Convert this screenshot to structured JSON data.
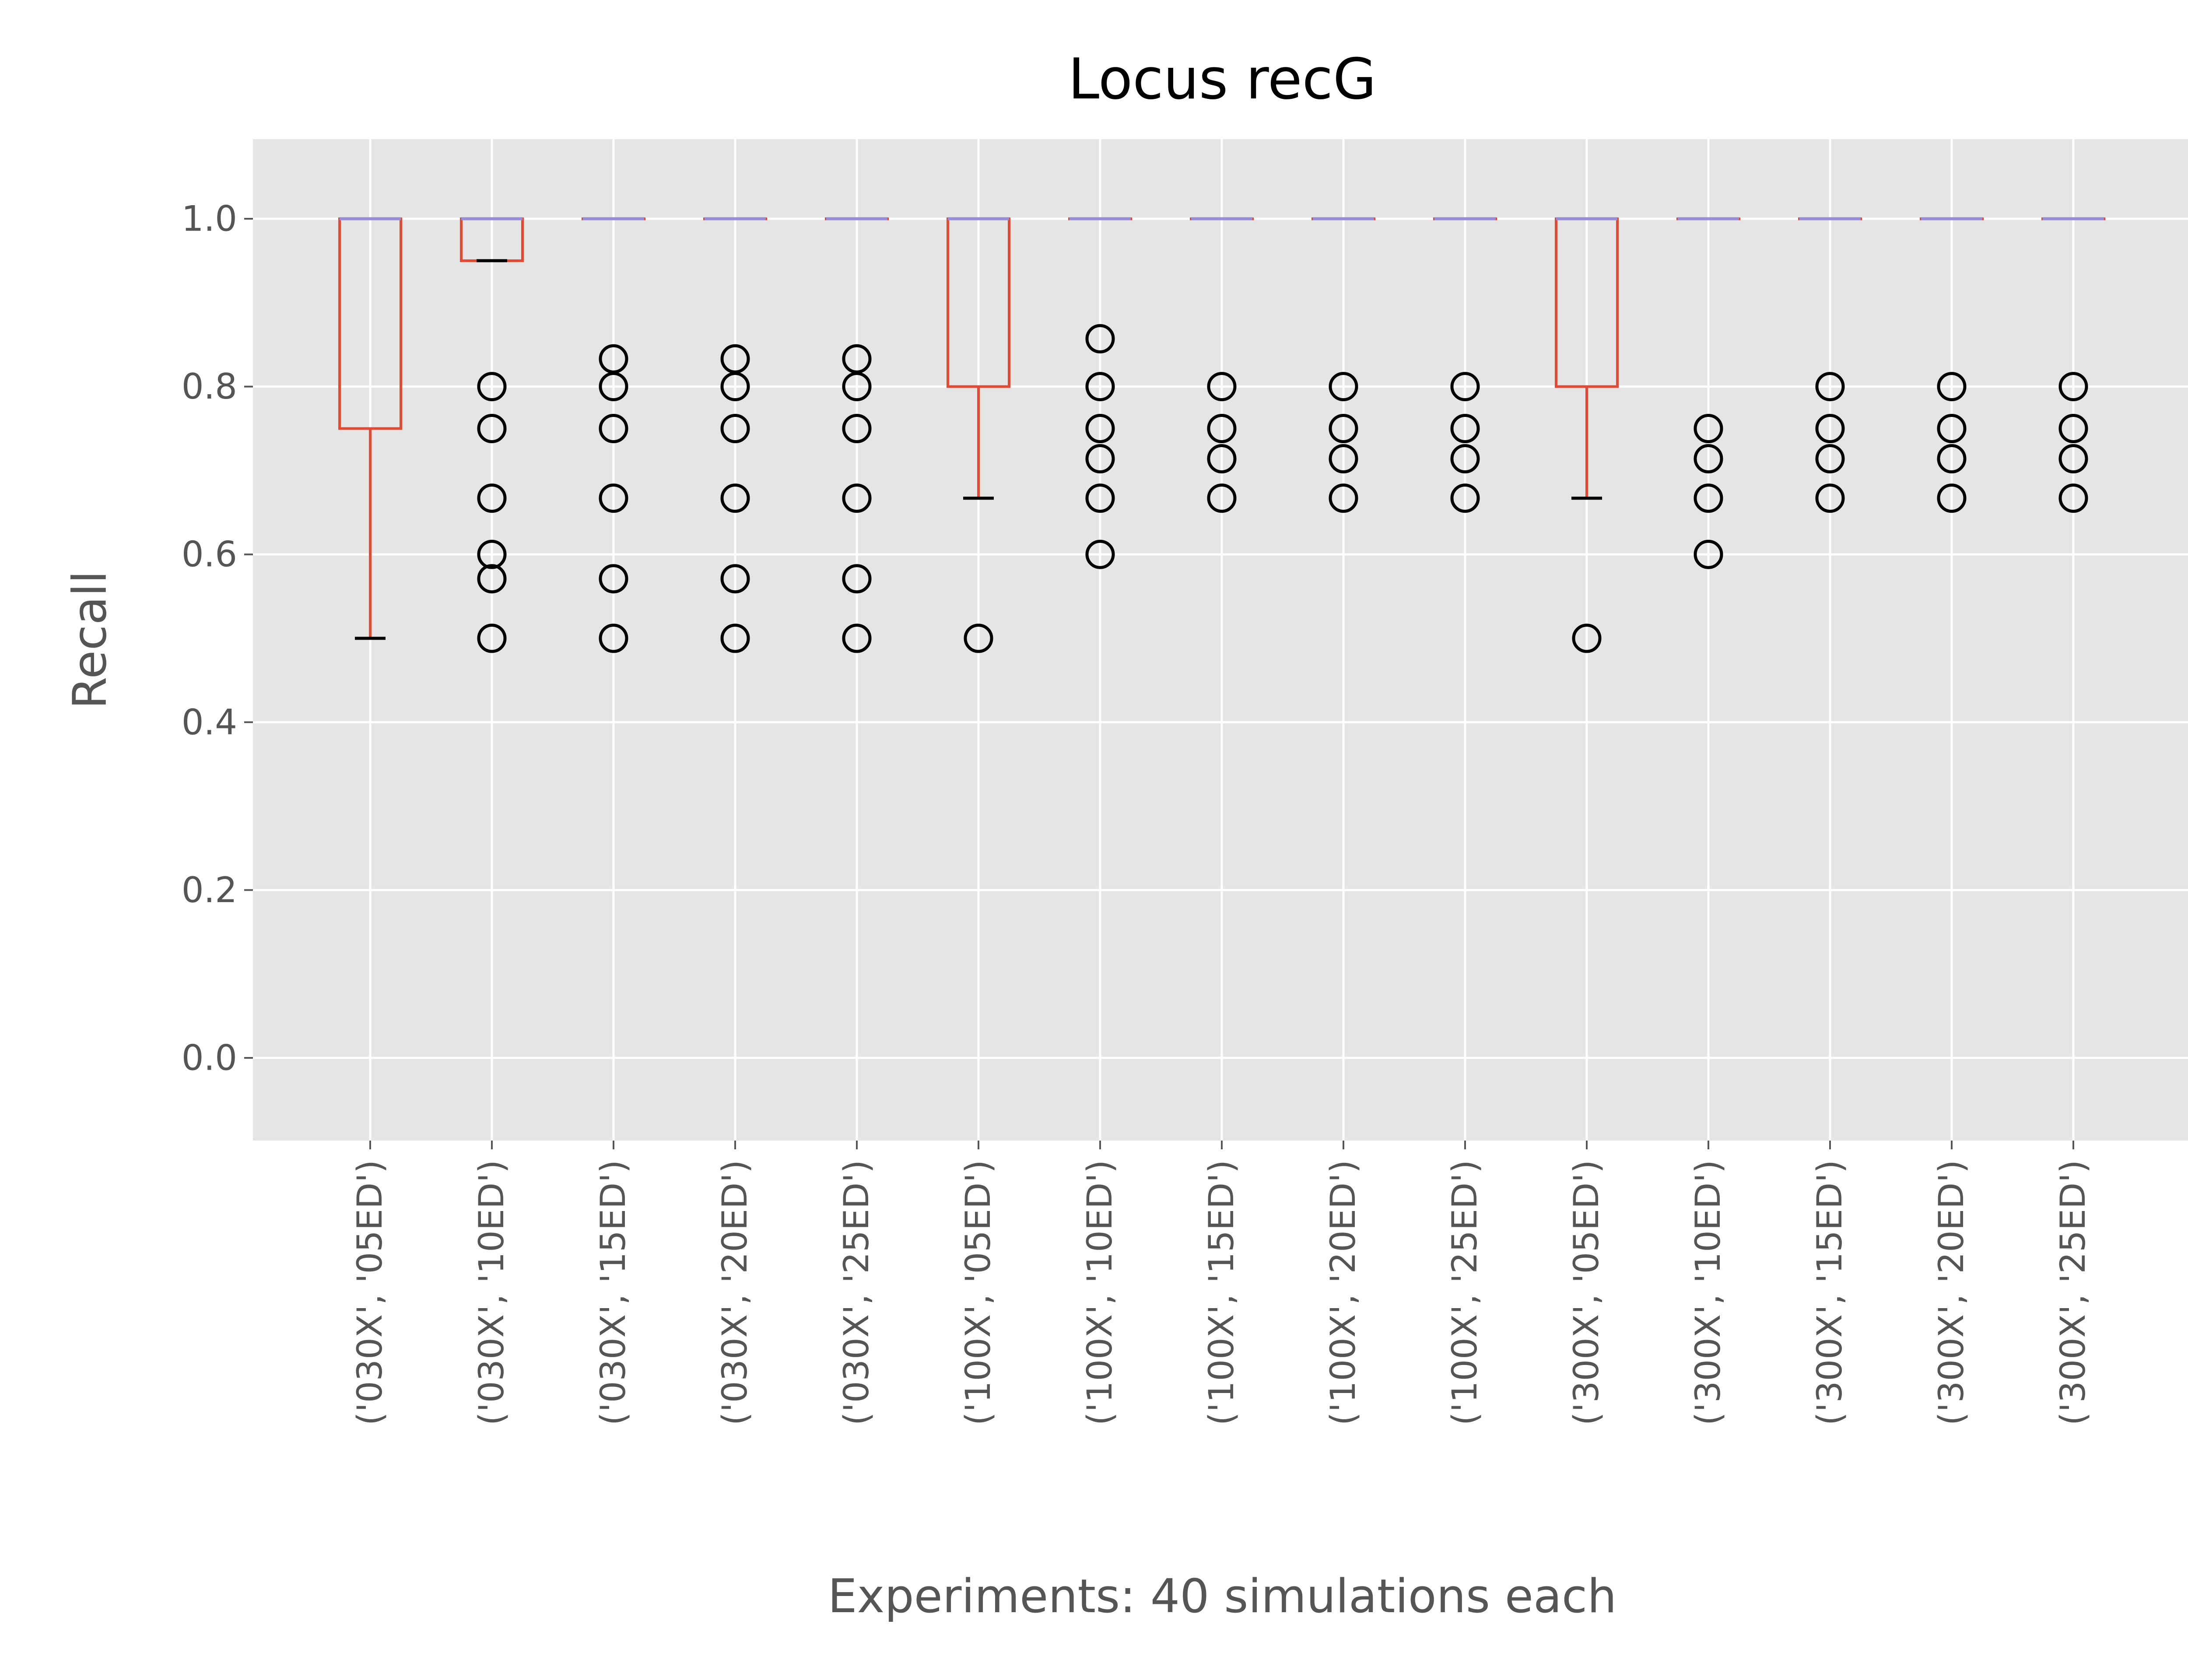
{
  "chart_data": {
    "type": "boxplot",
    "title": "Locus recG",
    "xlabel": "Experiments: 40 simulations each",
    "ylabel": "Recall",
    "ylim": [
      -0.1,
      1.1
    ],
    "yticks": [
      "0.0",
      "0.2",
      "0.4",
      "0.6",
      "0.8",
      "1.0"
    ],
    "grid": true,
    "colors": {
      "background": "#E5E5E5",
      "grid": "#FFFFFF",
      "box": "#E24A33",
      "median": "#988ED5",
      "whisker_cap": "#000000",
      "flier": "#000000",
      "tick_text": "#555555",
      "title_text": "#000000"
    },
    "categories": [
      "('030X', '05ED')",
      "('030X', '10ED')",
      "('030X', '15ED')",
      "('030X', '20ED')",
      "('030X', '25ED')",
      "('100X', '05ED')",
      "('100X', '10ED')",
      "('100X', '15ED')",
      "('100X', '20ED')",
      "('100X', '25ED')",
      "('300X', '05ED')",
      "('300X', '10ED')",
      "('300X', '15ED')",
      "('300X', '20ED')",
      "('300X', '25ED')"
    ],
    "boxes": [
      {
        "q1": 0.75,
        "median": 1.0,
        "q3": 1.0,
        "whislo": 0.5,
        "whishi": 1.0,
        "fliers": []
      },
      {
        "q1": 0.95,
        "median": 1.0,
        "q3": 1.0,
        "whislo": 0.95,
        "whishi": 1.0,
        "fliers": [
          0.8,
          0.75,
          0.667,
          0.6,
          0.571,
          0.5
        ]
      },
      {
        "q1": 1.0,
        "median": 1.0,
        "q3": 1.0,
        "whislo": 1.0,
        "whishi": 1.0,
        "fliers": [
          0.833,
          0.8,
          0.75,
          0.667,
          0.571,
          0.5
        ]
      },
      {
        "q1": 1.0,
        "median": 1.0,
        "q3": 1.0,
        "whislo": 1.0,
        "whishi": 1.0,
        "fliers": [
          0.833,
          0.8,
          0.75,
          0.667,
          0.571,
          0.5
        ]
      },
      {
        "q1": 1.0,
        "median": 1.0,
        "q3": 1.0,
        "whislo": 1.0,
        "whishi": 1.0,
        "fliers": [
          0.833,
          0.8,
          0.75,
          0.667,
          0.571,
          0.5
        ]
      },
      {
        "q1": 0.8,
        "median": 1.0,
        "q3": 1.0,
        "whislo": 0.667,
        "whishi": 1.0,
        "fliers": [
          0.5
        ]
      },
      {
        "q1": 1.0,
        "median": 1.0,
        "q3": 1.0,
        "whislo": 1.0,
        "whishi": 1.0,
        "fliers": [
          0.857,
          0.8,
          0.75,
          0.714,
          0.667,
          0.6
        ]
      },
      {
        "q1": 1.0,
        "median": 1.0,
        "q3": 1.0,
        "whislo": 1.0,
        "whishi": 1.0,
        "fliers": [
          0.8,
          0.75,
          0.714,
          0.667
        ]
      },
      {
        "q1": 1.0,
        "median": 1.0,
        "q3": 1.0,
        "whislo": 1.0,
        "whishi": 1.0,
        "fliers": [
          0.8,
          0.75,
          0.714,
          0.667
        ]
      },
      {
        "q1": 1.0,
        "median": 1.0,
        "q3": 1.0,
        "whislo": 1.0,
        "whishi": 1.0,
        "fliers": [
          0.8,
          0.75,
          0.714,
          0.667
        ]
      },
      {
        "q1": 0.8,
        "median": 1.0,
        "q3": 1.0,
        "whislo": 0.667,
        "whishi": 1.0,
        "fliers": [
          0.5
        ]
      },
      {
        "q1": 1.0,
        "median": 1.0,
        "q3": 1.0,
        "whislo": 1.0,
        "whishi": 1.0,
        "fliers": [
          0.75,
          0.714,
          0.667,
          0.6
        ]
      },
      {
        "q1": 1.0,
        "median": 1.0,
        "q3": 1.0,
        "whislo": 1.0,
        "whishi": 1.0,
        "fliers": [
          0.8,
          0.75,
          0.714,
          0.667
        ]
      },
      {
        "q1": 1.0,
        "median": 1.0,
        "q3": 1.0,
        "whislo": 1.0,
        "whishi": 1.0,
        "fliers": [
          0.8,
          0.75,
          0.714,
          0.667
        ]
      },
      {
        "q1": 1.0,
        "median": 1.0,
        "q3": 1.0,
        "whislo": 1.0,
        "whishi": 1.0,
        "fliers": [
          0.8,
          0.75,
          0.714,
          0.667
        ]
      }
    ]
  }
}
